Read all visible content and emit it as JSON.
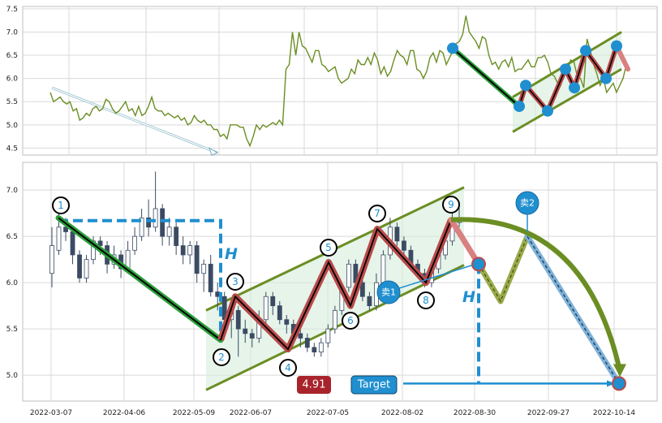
{
  "chart_data": [
    {
      "type": "line",
      "panel": "top",
      "ylim": [
        4.35,
        7.55
      ],
      "yticks": [
        "4.5",
        "5.0",
        "5.5",
        "6.0",
        "6.5",
        "7.0",
        "7.5"
      ],
      "grid": true,
      "series": [
        {
          "color": "#6b8e23",
          "values": [
            5.7,
            5.5,
            5.55,
            5.6,
            5.5,
            5.45,
            5.5,
            5.3,
            5.35,
            5.1,
            5.15,
            5.25,
            5.2,
            5.35,
            5.4,
            5.3,
            5.35,
            5.55,
            5.5,
            5.35,
            5.25,
            5.3,
            5.4,
            5.5,
            5.3,
            5.35,
            5.2,
            5.4,
            5.2,
            5.25,
            5.4,
            5.6,
            5.35,
            5.3,
            5.3,
            5.2,
            5.25,
            5.2,
            5.15,
            5.2,
            5.1,
            5.15,
            5.0,
            5.05,
            5.2,
            5.1,
            5.05,
            5.1,
            5.0,
            5.0,
            4.9,
            4.9,
            4.75,
            4.8,
            4.7,
            5.0,
            5.0,
            5.0,
            4.95,
            4.95,
            4.7,
            4.55,
            4.75,
            5.0,
            4.9,
            5.0,
            4.95,
            5.0,
            5.05,
            5.0,
            5.1,
            5.0,
            6.2,
            6.3,
            7.0,
            6.5,
            7.0,
            6.7,
            6.65,
            6.5,
            6.35,
            6.6,
            6.6,
            6.3,
            6.25,
            6.15,
            6.2,
            6.25,
            6.0,
            5.9,
            5.95,
            6.0,
            6.2,
            6.1,
            6.4,
            6.3,
            6.3,
            6.45,
            6.3,
            6.55,
            6.4,
            6.1,
            6.25,
            6.05,
            6.15,
            6.4,
            6.6,
            6.5,
            6.45,
            6.3,
            6.6,
            6.6,
            6.2,
            6.15,
            6.0,
            6.15,
            6.45,
            6.55,
            6.35,
            6.6,
            6.55,
            6.3,
            6.45,
            6.6,
            6.75,
            6.8,
            6.95,
            7.35,
            7.0,
            6.9,
            6.8,
            6.65,
            6.9,
            6.85,
            6.5,
            6.3,
            6.35,
            6.2,
            6.35,
            6.4,
            6.25,
            6.45,
            6.15,
            6.2,
            6.2,
            6.3,
            6.4,
            6.25,
            6.25,
            6.45,
            6.45,
            6.5,
            6.35,
            6.1,
            6.05,
            5.9,
            5.85,
            6.25,
            6.15,
            6.4,
            6.35,
            6.05,
            6.0,
            5.8,
            6.85,
            6.6,
            6.3,
            6.1,
            5.85,
            6.0,
            5.7,
            5.8,
            5.9,
            5.7,
            5.85,
            6.0,
            6.3
          ],
          "arrow_start": 5.8,
          "arrow_end": 4.4,
          "pattern_points": [
            6.65,
            5.4,
            5.85,
            5.3,
            6.2,
            5.8,
            6.6,
            6.0,
            6.7
          ],
          "channel_upper": [
            5.6,
            7.0
          ],
          "channel_lower": [
            4.85,
            6.2
          ]
        }
      ]
    },
    {
      "type": "candlestick",
      "panel": "bottom",
      "x_ticks": [
        "2022-03-07",
        "2022-04-06",
        "2022-05-09",
        "2022-06-07",
        "2022-07-05",
        "2022-08-02",
        "2022-08-30",
        "2022-09-27",
        "2022-10-14"
      ],
      "ylim": [
        4.72,
        7.3
      ],
      "yticks": [
        "5.0",
        "5.5",
        "6.0",
        "6.5",
        "7.0"
      ],
      "grid": true,
      "candles": [
        [
          6.1,
          6.4,
          5.95,
          6.6
        ],
        [
          6.35,
          6.6,
          6.3,
          6.75
        ],
        [
          6.6,
          6.55,
          6.45,
          6.7
        ],
        [
          6.55,
          6.3,
          6.2,
          6.6
        ],
        [
          6.3,
          6.05,
          6.0,
          6.35
        ],
        [
          6.05,
          6.25,
          6.0,
          6.3
        ],
        [
          6.25,
          6.45,
          6.2,
          6.5
        ],
        [
          6.45,
          6.4,
          6.3,
          6.5
        ],
        [
          6.4,
          6.2,
          6.1,
          6.45
        ],
        [
          6.2,
          6.3,
          6.15,
          6.4
        ],
        [
          6.3,
          6.15,
          6.05,
          6.35
        ],
        [
          6.15,
          6.35,
          6.1,
          6.45
        ],
        [
          6.35,
          6.5,
          6.3,
          6.6
        ],
        [
          6.5,
          6.7,
          6.45,
          6.8
        ],
        [
          6.7,
          6.6,
          6.5,
          6.9
        ],
        [
          6.6,
          6.8,
          6.55,
          7.2
        ],
        [
          6.8,
          6.5,
          6.4,
          6.85
        ],
        [
          6.5,
          6.6,
          6.4,
          6.7
        ],
        [
          6.6,
          6.4,
          6.3,
          6.65
        ],
        [
          6.4,
          6.3,
          6.2,
          6.5
        ],
        [
          6.3,
          6.4,
          6.2,
          6.45
        ],
        [
          6.4,
          6.1,
          6.0,
          6.45
        ],
        [
          6.1,
          6.2,
          5.9,
          6.25
        ],
        [
          6.2,
          5.9,
          5.85,
          6.3
        ],
        [
          5.9,
          5.85,
          5.7,
          6.0
        ],
        [
          5.85,
          5.6,
          5.5,
          5.9
        ],
        [
          5.6,
          5.7,
          5.4,
          5.8
        ],
        [
          5.7,
          5.5,
          5.2,
          5.75
        ],
        [
          5.5,
          5.45,
          5.35,
          5.6
        ],
        [
          5.45,
          5.4,
          5.3,
          5.5
        ],
        [
          5.4,
          5.6,
          5.35,
          5.7
        ],
        [
          5.6,
          5.85,
          5.55,
          5.9
        ],
        [
          5.85,
          5.75,
          5.65,
          5.9
        ],
        [
          5.75,
          5.6,
          5.55,
          5.8
        ],
        [
          5.6,
          5.55,
          5.45,
          5.65
        ],
        [
          5.55,
          5.45,
          5.4,
          5.6
        ],
        [
          5.45,
          5.4,
          5.3,
          5.5
        ],
        [
          5.4,
          5.3,
          5.25,
          5.45
        ],
        [
          5.3,
          5.25,
          5.2,
          5.35
        ],
        [
          5.25,
          5.35,
          5.2,
          5.4
        ],
        [
          5.35,
          5.5,
          5.3,
          5.55
        ],
        [
          5.5,
          5.7,
          5.45,
          5.75
        ],
        [
          5.7,
          5.95,
          5.65,
          6.0
        ],
        [
          5.95,
          6.2,
          5.9,
          6.25
        ],
        [
          6.2,
          6.0,
          5.95,
          6.25
        ],
        [
          6.0,
          5.85,
          5.8,
          6.1
        ],
        [
          5.85,
          5.75,
          5.7,
          5.9
        ],
        [
          5.75,
          6.0,
          5.7,
          6.1
        ],
        [
          6.0,
          6.3,
          5.95,
          6.35
        ],
        [
          6.3,
          6.6,
          6.25,
          6.7
        ],
        [
          6.6,
          6.45,
          6.4,
          6.65
        ],
        [
          6.45,
          6.35,
          6.3,
          6.5
        ],
        [
          6.35,
          6.2,
          6.15,
          6.4
        ],
        [
          6.2,
          6.1,
          6.05,
          6.25
        ],
        [
          6.1,
          6.0,
          5.95,
          6.15
        ],
        [
          6.0,
          6.15,
          5.95,
          6.2
        ],
        [
          6.15,
          6.3,
          6.1,
          6.35
        ],
        [
          6.3,
          6.45,
          6.25,
          6.55
        ],
        [
          6.45,
          6.65,
          6.4,
          6.75
        ],
        [
          6.65,
          6.7,
          6.6,
          6.85
        ]
      ],
      "labels": [
        "1",
        "2",
        "3",
        "4",
        "5",
        "6",
        "7",
        "8",
        "9",
        "卖1",
        "卖2",
        "4.91",
        "Target",
        "H",
        "H"
      ],
      "pattern_points": [
        6.7,
        5.38,
        5.85,
        5.28,
        6.22,
        5.75,
        6.58,
        6.0,
        6.68
      ],
      "forecast_points": [
        6.68,
        6.2,
        5.8,
        6.5,
        4.91
      ],
      "decline_start": 6.7,
      "decline_end": 5.38,
      "height_box_top": 6.67,
      "sell1_level": 6.2,
      "target_price": 4.91,
      "channel_upper": [
        5.7,
        7.03
      ],
      "channel_lower": [
        4.84,
        6.19
      ]
    }
  ],
  "colors": {
    "price_line": "#6b8e23",
    "channel": "#6b8e23",
    "channel_fill": "#d6ecdc",
    "pattern_fill": "#b84a4a",
    "decline": "#2aa03a",
    "marker_blue": "#1f8fd0",
    "dashed_blue": "#1f8fd0",
    "target_box": "#1f8fd0",
    "price_box": "#a8232b",
    "grid": "#d9d9d9",
    "candle_up": "#ffffff",
    "candle_down": "#3b4b63"
  }
}
